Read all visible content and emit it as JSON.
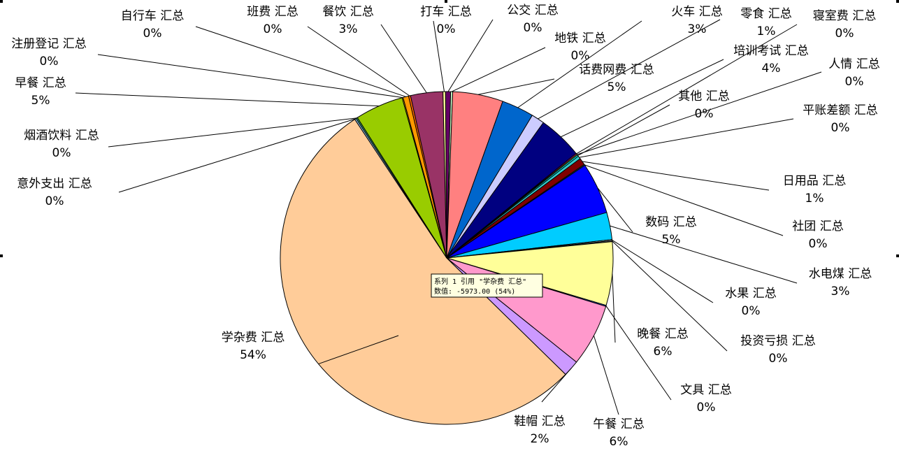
{
  "chart_data": {
    "type": "pie",
    "series_name": "系列 1",
    "slices": [
      {
        "label": "学杂费 汇总",
        "pct_label": "54%",
        "value": 54.5,
        "color": "#ffcc99"
      },
      {
        "label": "意外支出 汇总",
        "pct_label": "0%",
        "value": 0.15,
        "color": "#99ccff"
      },
      {
        "label": "烟酒饮料 汇总",
        "pct_label": "0%",
        "value": 0.15,
        "color": "#339966"
      },
      {
        "label": "早餐 汇总",
        "pct_label": "5%",
        "value": 4.8,
        "color": "#99cc00"
      },
      {
        "label": "注册登记 汇总",
        "pct_label": "0%",
        "value": 0.1,
        "color": "#ffcc00"
      },
      {
        "label": "自行车 汇总",
        "pct_label": "0%",
        "value": 0.55,
        "color": "#ff9900"
      },
      {
        "label": "班费 汇总",
        "pct_label": "0%",
        "value": 0.2,
        "color": "#ff6600"
      },
      {
        "label": "餐饮 汇总",
        "pct_label": "3%",
        "value": 3.2,
        "color": "#993366"
      },
      {
        "label": "打车 汇总",
        "pct_label": "0%",
        "value": 0.25,
        "color": "#ffff99"
      },
      {
        "label": "公交 汇总",
        "pct_label": "0%",
        "value": 0.5,
        "color": "#660066"
      },
      {
        "label": "地铁 汇总",
        "pct_label": "0%",
        "value": 0.2,
        "color": "#ccffcc"
      },
      {
        "label": "话费网费 汇总",
        "pct_label": "5%",
        "value": 5.0,
        "color": "#ff8080"
      },
      {
        "label": "火车 汇总",
        "pct_label": "3%",
        "value": 3.2,
        "color": "#0066cc"
      },
      {
        "label": "零食 汇总",
        "pct_label": "1%",
        "value": 1.3,
        "color": "#ccccff"
      },
      {
        "label": "培训考试 汇总",
        "pct_label": "4%",
        "value": 4.4,
        "color": "#000080"
      },
      {
        "label": "寝室费 汇总",
        "pct_label": "0%",
        "value": 0.1,
        "color": "#ff00ff"
      },
      {
        "label": "人情 汇总",
        "pct_label": "0%",
        "value": 0.1,
        "color": "#ffff00"
      },
      {
        "label": "其他 汇总",
        "pct_label": "0%",
        "value": 0.15,
        "color": "#00ffff"
      },
      {
        "label": "平账差额 汇总",
        "pct_label": "0%",
        "value": 0.3,
        "color": "#33cccc"
      },
      {
        "label": "日用品 汇总",
        "pct_label": "1%",
        "value": 0.7,
        "color": "#800000"
      },
      {
        "label": "社团 汇总",
        "pct_label": "0%",
        "value": 0.1,
        "color": "#008080"
      },
      {
        "label": "数码 汇总",
        "pct_label": "5%",
        "value": 5.1,
        "color": "#0000ff"
      },
      {
        "label": "水电煤 汇总",
        "pct_label": "3%",
        "value": 2.7,
        "color": "#00ccff"
      },
      {
        "label": "水果 汇总",
        "pct_label": "0%",
        "value": 0.1,
        "color": "#ccffff"
      },
      {
        "label": "投资亏损 汇总",
        "pct_label": "0%",
        "value": 0.1,
        "color": "#808080"
      },
      {
        "label": "晚餐 汇总",
        "pct_label": "6%",
        "value": 6.3,
        "color": "#ffff99"
      },
      {
        "label": "文具 汇总",
        "pct_label": "0%",
        "value": 0.1,
        "color": "#3366ff"
      },
      {
        "label": "午餐 汇总",
        "pct_label": "6%",
        "value": 6.2,
        "color": "#ff99cc"
      },
      {
        "label": "鞋帽 汇总",
        "pct_label": "2%",
        "value": 1.6,
        "color": "#cc99ff"
      }
    ],
    "tooltip": {
      "line1": "系列 1 引用 \"学杂费 汇总\"",
      "line2": "数值: -5973.00  (54%)"
    }
  }
}
